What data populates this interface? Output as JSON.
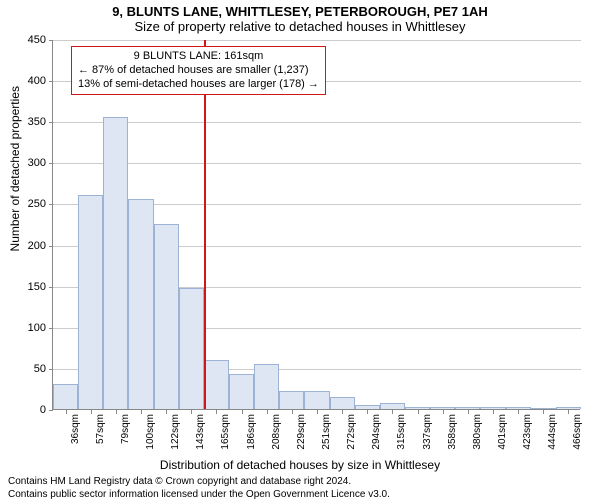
{
  "title_line1": "9, BLUNTS LANE, WHITTLESEY, PETERBOROUGH, PE7 1AH",
  "title_line2": "Size of property relative to detached houses in Whittlesey",
  "ylabel": "Number of detached properties",
  "xlabel": "Distribution of detached houses by size in Whittlesey",
  "chart": {
    "type": "histogram",
    "ylim": [
      0,
      450
    ],
    "ytick_step": 50,
    "grid_color": "#cccccc",
    "axis_color": "#888888",
    "bar_fill": "#dde6f2",
    "bar_stroke": "#9cb3d4",
    "marker_color": "#d01717",
    "background_color": "#ffffff",
    "yticks": [
      0,
      50,
      100,
      150,
      200,
      250,
      300,
      350,
      400,
      450
    ],
    "xticks": [
      "36sqm",
      "57sqm",
      "79sqm",
      "100sqm",
      "122sqm",
      "143sqm",
      "165sqm",
      "186sqm",
      "208sqm",
      "229sqm",
      "251sqm",
      "272sqm",
      "294sqm",
      "315sqm",
      "337sqm",
      "358sqm",
      "380sqm",
      "401sqm",
      "423sqm",
      "444sqm",
      "466sqm"
    ],
    "values": [
      30,
      260,
      355,
      255,
      225,
      147,
      60,
      43,
      55,
      22,
      22,
      15,
      5,
      7,
      3,
      3,
      2,
      3,
      2,
      1,
      2
    ],
    "marker_index": 6,
    "annotation": {
      "line1": "9 BLUNTS LANE: 161sqm",
      "line2": "← 87% of detached houses are smaller (1,237)",
      "line3": "13% of semi-detached houses are larger (178) →"
    }
  },
  "footer_line1": "Contains HM Land Registry data © Crown copyright and database right 2024.",
  "footer_line2": "Contains public sector information licensed under the Open Government Licence v3.0."
}
